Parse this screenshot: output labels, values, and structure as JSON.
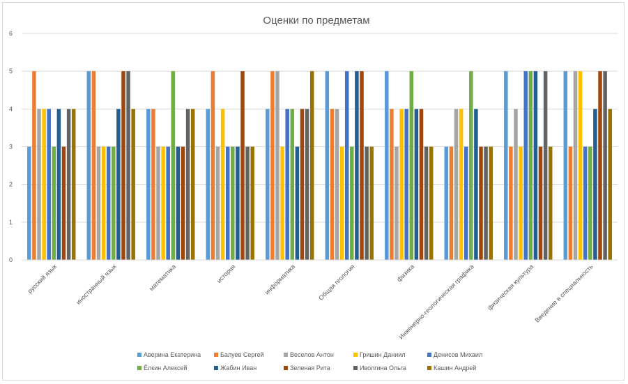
{
  "chart_data": {
    "type": "bar",
    "title": "Оценки по предметам",
    "xlabel": "",
    "ylabel": "",
    "ylim": [
      0,
      6
    ],
    "yticks": [
      0,
      1,
      2,
      3,
      4,
      5,
      6
    ],
    "grid": true,
    "legend_position": "bottom",
    "categories": [
      "русский язык",
      "иностранный язык",
      "математика",
      "история",
      "информатика",
      "Общая геология",
      "физика",
      "Инженерно-геологическая графика",
      "физическая культура",
      "Введение в специальность"
    ],
    "series": [
      {
        "name": "Аверина Екатерина",
        "color": "#5B9BD5",
        "values": [
          3,
          5,
          4,
          4,
          4,
          5,
          5,
          3,
          5,
          5
        ]
      },
      {
        "name": "Балуев Сергей",
        "color": "#ED7D31",
        "values": [
          5,
          5,
          4,
          5,
          5,
          4,
          4,
          3,
          3,
          3
        ]
      },
      {
        "name": "Веселов Антон",
        "color": "#A5A5A5",
        "values": [
          4,
          3,
          3,
          3,
          5,
          4,
          3,
          4,
          4,
          5
        ]
      },
      {
        "name": "Гришин Даниил",
        "color": "#FFC000",
        "values": [
          4,
          3,
          3,
          4,
          3,
          3,
          4,
          4,
          3,
          5
        ]
      },
      {
        "name": "Денисов Михаил",
        "color": "#4472C4",
        "values": [
          4,
          3,
          3,
          3,
          4,
          5,
          4,
          3,
          5,
          3
        ]
      },
      {
        "name": "Ёлкин Алексей",
        "color": "#70AD47",
        "values": [
          3,
          3,
          5,
          3,
          4,
          3,
          5,
          5,
          5,
          3
        ]
      },
      {
        "name": "Жабин Иван",
        "color": "#255E91",
        "values": [
          4,
          4,
          3,
          3,
          3,
          5,
          4,
          4,
          5,
          4
        ]
      },
      {
        "name": "Зеленая Рита",
        "color": "#9E480E",
        "values": [
          3,
          5,
          3,
          5,
          4,
          5,
          4,
          3,
          3,
          5
        ]
      },
      {
        "name": "Иволгина Ольга",
        "color": "#636363",
        "values": [
          4,
          5,
          4,
          3,
          4,
          3,
          3,
          3,
          5,
          5
        ]
      },
      {
        "name": "Кашин Андрей",
        "color": "#997300",
        "values": [
          4,
          4,
          4,
          3,
          5,
          3,
          3,
          3,
          3,
          4
        ]
      }
    ]
  }
}
